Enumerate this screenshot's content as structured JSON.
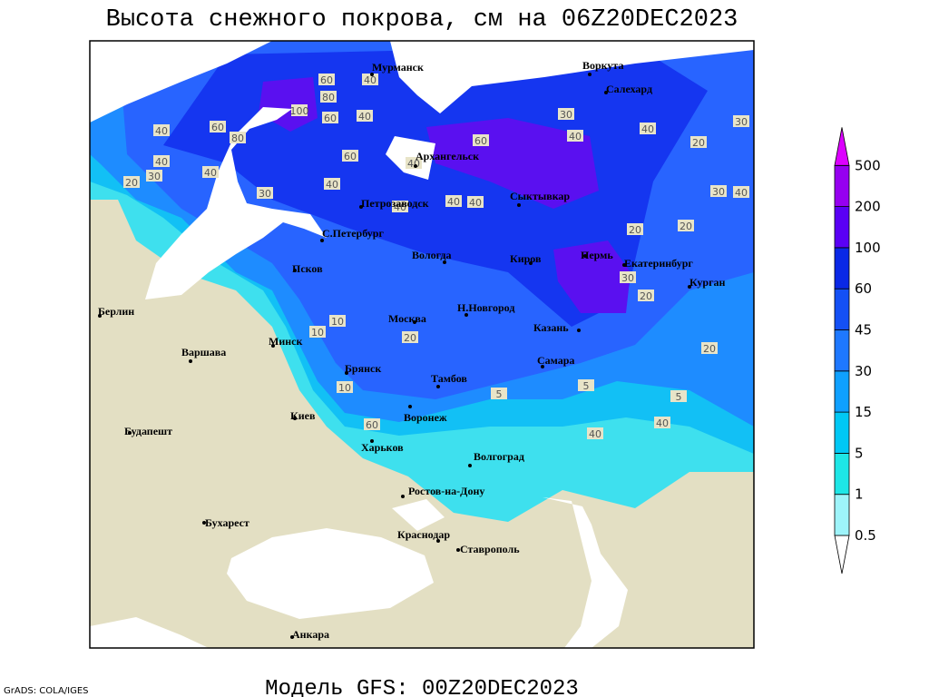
{
  "header": {
    "title": "Высота снежного покрова, см на 06Z20DEC2023"
  },
  "footer": {
    "model": "Модель GFS: 00Z20DEC2023",
    "credit": "GrADS: COLA/IGES"
  },
  "legend": {
    "levels": [
      0.5,
      1,
      5,
      15,
      30,
      45,
      60,
      100,
      200,
      500
    ],
    "colors": [
      "#ffffff",
      "#9ef4fa",
      "#1ee6e6",
      "#00c8f5",
      "#0fa0ff",
      "#1e78ff",
      "#1450f5",
      "#0a28e6",
      "#5a00f5",
      "#9600f0",
      "#dc00ff"
    ]
  },
  "cities": [
    "Мурманск",
    "Воркута",
    "Салехард",
    "Архангельск",
    "Сыктывкар",
    "Петрозаводск",
    "С.Петербург",
    "Вологда",
    "Киров",
    "Пермь",
    "Екатеринбург",
    "Курган",
    "Псков",
    "Берлин",
    "Н.Новгород",
    "Москва",
    "Казань",
    "Минск",
    "Варшава",
    "Самара",
    "Брянск",
    "Тамбов",
    "Киев",
    "Воронеж",
    "Будапешт",
    "Харьков",
    "Волгоград",
    "Ростов-на-Дону",
    "Бухарест",
    "Краснодар",
    "Ставрополь",
    "Анкара"
  ],
  "contour_labels": [
    40,
    60,
    80,
    100,
    60,
    40,
    40,
    40,
    30,
    20,
    30,
    60,
    40,
    60,
    80,
    60,
    40,
    40,
    40,
    40,
    30,
    40,
    20,
    30,
    30,
    40,
    20,
    20,
    30,
    20,
    20,
    20,
    10,
    10,
    10,
    5,
    5,
    5,
    40,
    40,
    60,
    40,
    40
  ]
}
